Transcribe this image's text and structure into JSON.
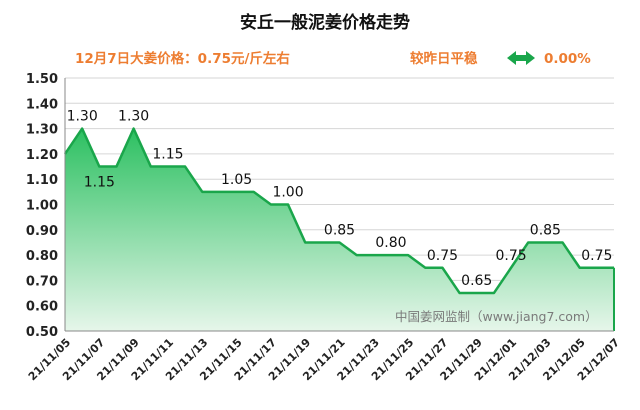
{
  "header": {
    "title": "安丘一般泥姜价格走势",
    "price_line": "12月7日大姜价格：0.75元/斤左右",
    "change_label": "较昨日平稳",
    "change_value": "0.00%",
    "change_icon": "double-arrow-icon"
  },
  "watermark": "中国姜网监制（www.jiang7.com）",
  "colors": {
    "line": "#1AA64B",
    "fill_top": "#2CC061",
    "fill_bottom": "#E6F6EA",
    "accent": "#ED7D31",
    "icon": "#1AA64B"
  },
  "chart_data": {
    "type": "area",
    "title": "安丘一般泥姜价格走势",
    "xlabel": "",
    "ylabel": "",
    "ylim": [
      0.5,
      1.5
    ],
    "ytick_labels": [
      "0.50",
      "0.60",
      "0.70",
      "0.80",
      "0.90",
      "1.00",
      "1.10",
      "1.20",
      "1.30",
      "1.40",
      "1.50"
    ],
    "x_tick_labels": [
      "21/11/05",
      "21/11/07",
      "21/11/09",
      "21/11/11",
      "21/11/13",
      "21/11/15",
      "21/11/17",
      "21/11/19",
      "21/11/21",
      "21/11/23",
      "21/11/25",
      "21/11/27",
      "21/11/29",
      "21/12/01",
      "21/12/03",
      "21/12/05",
      "21/12/07"
    ],
    "x": [
      "21/11/05",
      "21/11/06",
      "21/11/07",
      "21/11/08",
      "21/11/09",
      "21/11/10",
      "21/11/11",
      "21/11/12",
      "21/11/13",
      "21/11/14",
      "21/11/15",
      "21/11/16",
      "21/11/17",
      "21/11/18",
      "21/11/19",
      "21/11/20",
      "21/11/21",
      "21/11/22",
      "21/11/23",
      "21/11/24",
      "21/11/25",
      "21/11/26",
      "21/11/27",
      "21/11/28",
      "21/11/29",
      "21/11/30",
      "21/12/01",
      "21/12/02",
      "21/12/03",
      "21/12/04",
      "21/12/05",
      "21/12/06",
      "21/12/07"
    ],
    "values": [
      1.2,
      1.3,
      1.15,
      1.15,
      1.3,
      1.15,
      1.15,
      1.15,
      1.05,
      1.05,
      1.05,
      1.05,
      1.0,
      1.0,
      0.85,
      0.85,
      0.85,
      0.8,
      0.8,
      0.8,
      0.8,
      0.75,
      0.75,
      0.65,
      0.65,
      0.65,
      0.75,
      0.85,
      0.85,
      0.85,
      0.75,
      0.75,
      0.75
    ],
    "data_labels": [
      {
        "index": 1,
        "text": "1.30"
      },
      {
        "index": 2,
        "text": "1.15"
      },
      {
        "index": 4,
        "text": "1.30"
      },
      {
        "index": 6,
        "text": "1.15"
      },
      {
        "index": 10,
        "text": "1.05"
      },
      {
        "index": 13,
        "text": "1.00"
      },
      {
        "index": 16,
        "text": "0.85"
      },
      {
        "index": 19,
        "text": "0.80"
      },
      {
        "index": 22,
        "text": "0.75"
      },
      {
        "index": 24,
        "text": "0.65"
      },
      {
        "index": 26,
        "text": "0.75"
      },
      {
        "index": 28,
        "text": "0.85"
      },
      {
        "index": 31,
        "text": "0.75"
      }
    ],
    "grid": true,
    "legend": "none"
  }
}
